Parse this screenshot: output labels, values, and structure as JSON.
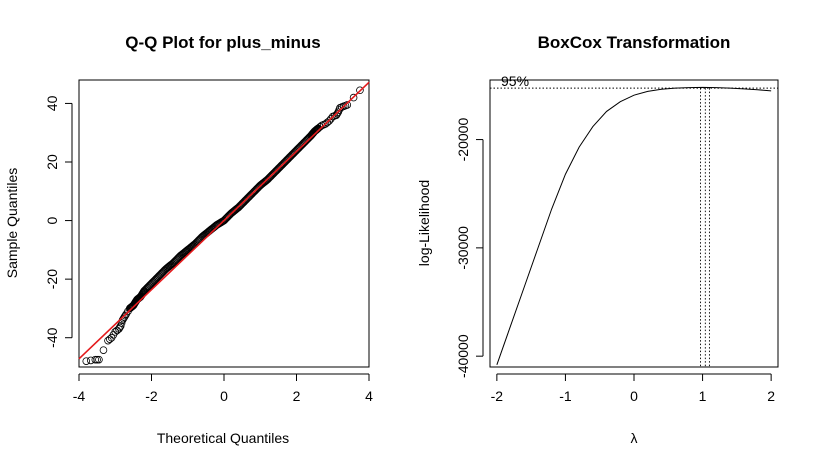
{
  "chart_data": [
    {
      "type": "scatter",
      "title": "Q-Q Plot for plus_minus",
      "xlabel": "Theoretical Quantiles",
      "ylabel": "Sample Quantiles",
      "xlim": [
        -4,
        4
      ],
      "ylim": [
        -50,
        48
      ],
      "x_ticks": [
        -4,
        -2,
        0,
        2,
        4
      ],
      "y_ticks": [
        -40,
        -20,
        0,
        20,
        40
      ],
      "grid": false,
      "series": [
        {
          "kind": "points",
          "marker": "open-circle",
          "color": "#000000",
          "x": [
            -3.8,
            -3.55,
            -3.45,
            -3.2,
            -3.1,
            -3.0,
            -2.9,
            -2.85,
            -2.8,
            -2.75,
            -2.7,
            -2.6,
            -2.5,
            -2.4,
            -2.3,
            -2.2,
            -2.0,
            -1.8,
            -1.6,
            -1.4,
            -1.2,
            -1.0,
            -0.8,
            -0.6,
            -0.4,
            -0.2,
            0.0,
            0.2,
            0.4,
            0.6,
            0.8,
            1.0,
            1.2,
            1.4,
            1.6,
            1.8,
            2.0,
            2.2,
            2.4,
            2.5,
            2.6,
            2.7,
            2.8,
            2.9,
            3.0,
            3.1,
            3.15,
            3.2,
            3.3,
            3.4,
            3.75
          ],
          "y": [
            -48,
            -47.5,
            -47.5,
            -41,
            -40,
            -38,
            -37,
            -36,
            -34,
            -33,
            -32,
            -30,
            -29,
            -27,
            -26,
            -24,
            -21.5,
            -19,
            -16.5,
            -14.5,
            -12,
            -10,
            -8,
            -5.5,
            -3.5,
            -1.5,
            0,
            2.5,
            4.5,
            7,
            9.5,
            12,
            14,
            16.5,
            19,
            21.5,
            24,
            26.5,
            29,
            30.5,
            31.5,
            32.5,
            33,
            34,
            35.5,
            36,
            37,
            38.5,
            39,
            39.5,
            44.5
          ]
        },
        {
          "kind": "reference-line",
          "color": "#e41a1c",
          "intercept": 0,
          "slope": 11.8
        }
      ]
    },
    {
      "type": "line",
      "title": "BoxCox Transformation",
      "xlabel": "λ",
      "ylabel": "log-Likelihood",
      "xlim": [
        -2.1,
        2.1
      ],
      "ylim": [
        -41000,
        -14500
      ],
      "x_ticks": [
        -2,
        -1,
        0,
        1,
        2
      ],
      "y_ticks": [
        -40000,
        -30000,
        -20000
      ],
      "grid": false,
      "annotation": "95%",
      "ci_level_y": -15250,
      "lambda_hat": 1.04,
      "ci_lambda": [
        0.97,
        1.1
      ],
      "series": [
        {
          "kind": "curve",
          "color": "#000000",
          "x": [
            -2.0,
            -1.8,
            -1.6,
            -1.4,
            -1.2,
            -1.0,
            -0.8,
            -0.6,
            -0.4,
            -0.2,
            0.0,
            0.2,
            0.4,
            0.6,
            0.8,
            1.0,
            1.2,
            1.4,
            1.6,
            1.8,
            2.0
          ],
          "y": [
            -40800,
            -37200,
            -33600,
            -30000,
            -26400,
            -23200,
            -20700,
            -18800,
            -17400,
            -16500,
            -15900,
            -15550,
            -15350,
            -15250,
            -15200,
            -15180,
            -15200,
            -15250,
            -15320,
            -15400,
            -15500
          ]
        }
      ]
    }
  ]
}
